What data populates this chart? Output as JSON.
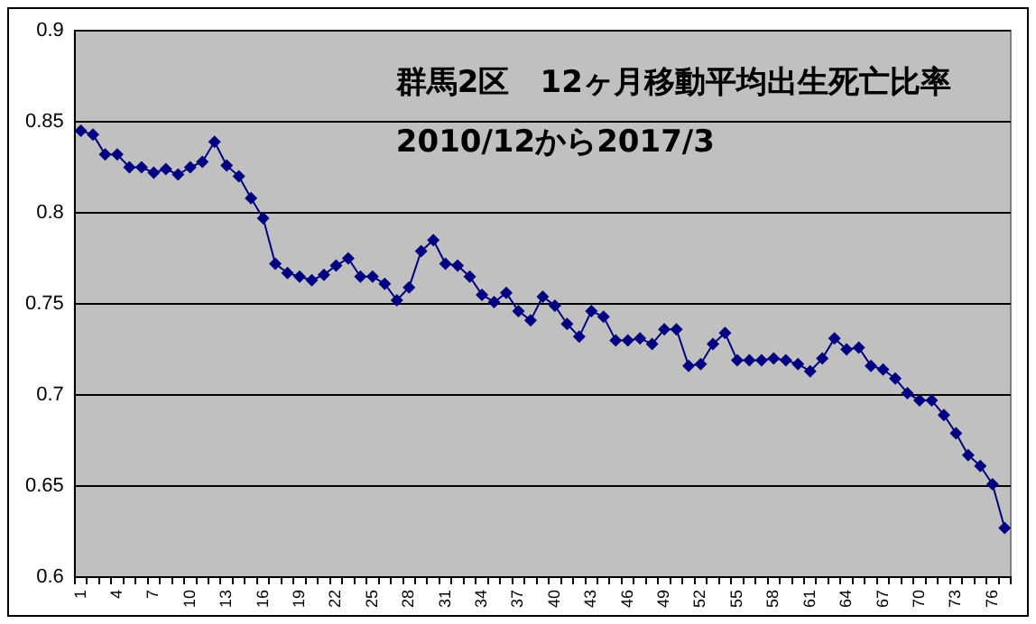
{
  "chart_data": {
    "type": "line",
    "title": "群馬2区　12ヶ月移動平均出生死亡比率",
    "subtitle": "2010/12から2017/3",
    "categories": [
      "1",
      null,
      null,
      "4",
      null,
      null,
      "7",
      null,
      null,
      "10",
      null,
      null,
      "13",
      null,
      null,
      "16",
      null,
      null,
      "19",
      null,
      null,
      "22",
      null,
      null,
      "25",
      null,
      null,
      "28",
      null,
      null,
      "31",
      null,
      null,
      "34",
      null,
      null,
      "37",
      null,
      null,
      "40",
      null,
      null,
      "43",
      null,
      null,
      "46",
      null,
      null,
      "49",
      null,
      null,
      "52",
      null,
      null,
      "55",
      null,
      null,
      "58",
      null,
      null,
      "61",
      null,
      null,
      "64",
      null,
      null,
      "67",
      null,
      null,
      "70",
      null,
      null,
      "73",
      null,
      null,
      "76",
      null
    ],
    "series": [
      {
        "color": "#000080",
        "values": [
          0.845,
          0.843,
          0.832,
          0.832,
          0.825,
          0.825,
          0.822,
          0.824,
          0.821,
          0.825,
          0.828,
          0.839,
          0.826,
          0.82,
          0.808,
          0.797,
          0.772,
          0.767,
          0.765,
          0.763,
          0.766,
          0.771,
          0.775,
          0.765,
          0.765,
          0.761,
          0.752,
          0.759,
          0.779,
          0.785,
          0.772,
          0.771,
          0.765,
          0.755,
          0.751,
          0.756,
          0.746,
          0.741,
          0.754,
          0.749,
          0.739,
          0.732,
          0.746,
          0.743,
          0.73,
          0.73,
          0.731,
          0.728,
          0.736,
          0.736,
          0.716,
          0.717,
          0.728,
          0.734,
          0.719,
          0.719,
          0.719,
          0.72,
          0.719,
          0.717,
          0.713,
          0.72,
          0.731,
          0.725,
          0.726,
          0.716,
          0.714,
          0.709,
          0.701,
          0.697,
          0.697,
          0.689,
          0.679,
          0.667,
          0.661,
          0.651,
          0.627
        ]
      }
    ],
    "ylim": [
      0.6,
      0.9
    ],
    "yticks": [
      0.6,
      0.65,
      0.7,
      0.75,
      0.8,
      0.85,
      0.9
    ],
    "grid": "y",
    "legend": false,
    "marker": "diamond",
    "line_style": "solid"
  }
}
